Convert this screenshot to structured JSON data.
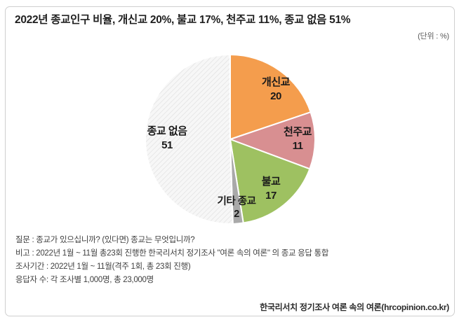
{
  "title": "2022년 종교인구 비율, 개신교 20%, 불교 17%, 천주교 11%, 종교 없음 51%",
  "unit_label": "(단위 : %)",
  "chart_data": {
    "type": "pie",
    "title": "2022년 종교인구 비율",
    "unit": "%",
    "start_angle_deg": 0,
    "direction": "clockwise",
    "slice_border_color": "#ffffff",
    "segments": [
      {
        "label": "개신교",
        "value": 20,
        "color": "#F49D4D"
      },
      {
        "label": "천주교",
        "value": 11,
        "color": "#D88F91"
      },
      {
        "label": "불교",
        "value": 17,
        "color": "#9EC161"
      },
      {
        "label": "기타 종교",
        "value": 2,
        "color": "#A9A9A9"
      },
      {
        "label": "종교 없음",
        "value": 51,
        "color": "#F7F7F7",
        "hatch_color": "#E3E3E3",
        "pattern": "diagonal-hatch"
      }
    ]
  },
  "notes": [
    "질문 : 종교가 있으십니까? (있다면) 종교는 무엇입니까?",
    "비고 : 2022년 1월 ~ 11월 총23회 진행한 한국리서치 정기조사 \"여론 속의 여론\" 의 종교 응답 통합",
    "조사기간 : 2022년 1월 ~ 11월(격주 1회, 총 23회 진행)",
    "응답자 수: 각 조사별 1,000명, 총 23,000명"
  ],
  "footer": "한국리서치 정기조사 여론 속의 여론(hrcopinion.co.kr)"
}
